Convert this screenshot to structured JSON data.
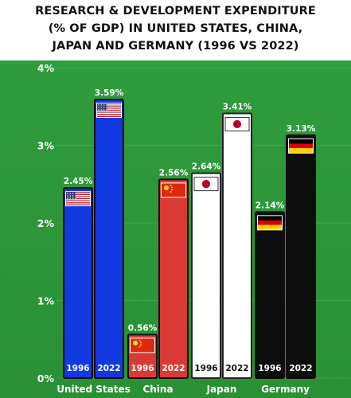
{
  "title": {
    "lines": [
      "RESEARCH & DEVELOPMENT EXPENDITURE",
      "(% OF GDP) IN UNITED STATES, CHINA,",
      "JAPAN AND GERMANY (1996 VS 2022)"
    ]
  },
  "colors": {
    "background": "#2e9a3c",
    "united_states": "#1339e0",
    "china": "#d93a36",
    "japan": "#ffffff",
    "germany": "#0d0d0d"
  },
  "chart_data": {
    "type": "bar",
    "title": "RESEARCH & DEVELOPMENT EXPENDITURE (% OF GDP) IN UNITED STATES, CHINA, JAPAN AND GERMANY (1996 VS 2022)",
    "categories": [
      "United States",
      "China",
      "Japan",
      "Germany"
    ],
    "years": [
      "1996",
      "2022"
    ],
    "series": [
      {
        "name": "1996",
        "values": [
          2.45,
          0.56,
          2.64,
          2.14
        ]
      },
      {
        "name": "2022",
        "values": [
          3.59,
          2.56,
          3.41,
          3.13
        ]
      }
    ],
    "value_labels": [
      [
        "2.45%",
        "3.59%"
      ],
      [
        "0.56%",
        "2.56%"
      ],
      [
        "2.64%",
        "3.41%"
      ],
      [
        "2.14%",
        "3.13%"
      ]
    ],
    "flags": [
      "us-flag-icon",
      "china-flag-icon",
      "japan-flag-icon",
      "germany-flag-icon"
    ],
    "ylim": [
      0,
      4
    ],
    "yticks": [
      0,
      1,
      2,
      3,
      4
    ],
    "ytick_labels": [
      "0%",
      "1%",
      "2%",
      "3%",
      "4%"
    ],
    "xlabel": "",
    "ylabel": "",
    "grid": true,
    "legend": "none"
  }
}
